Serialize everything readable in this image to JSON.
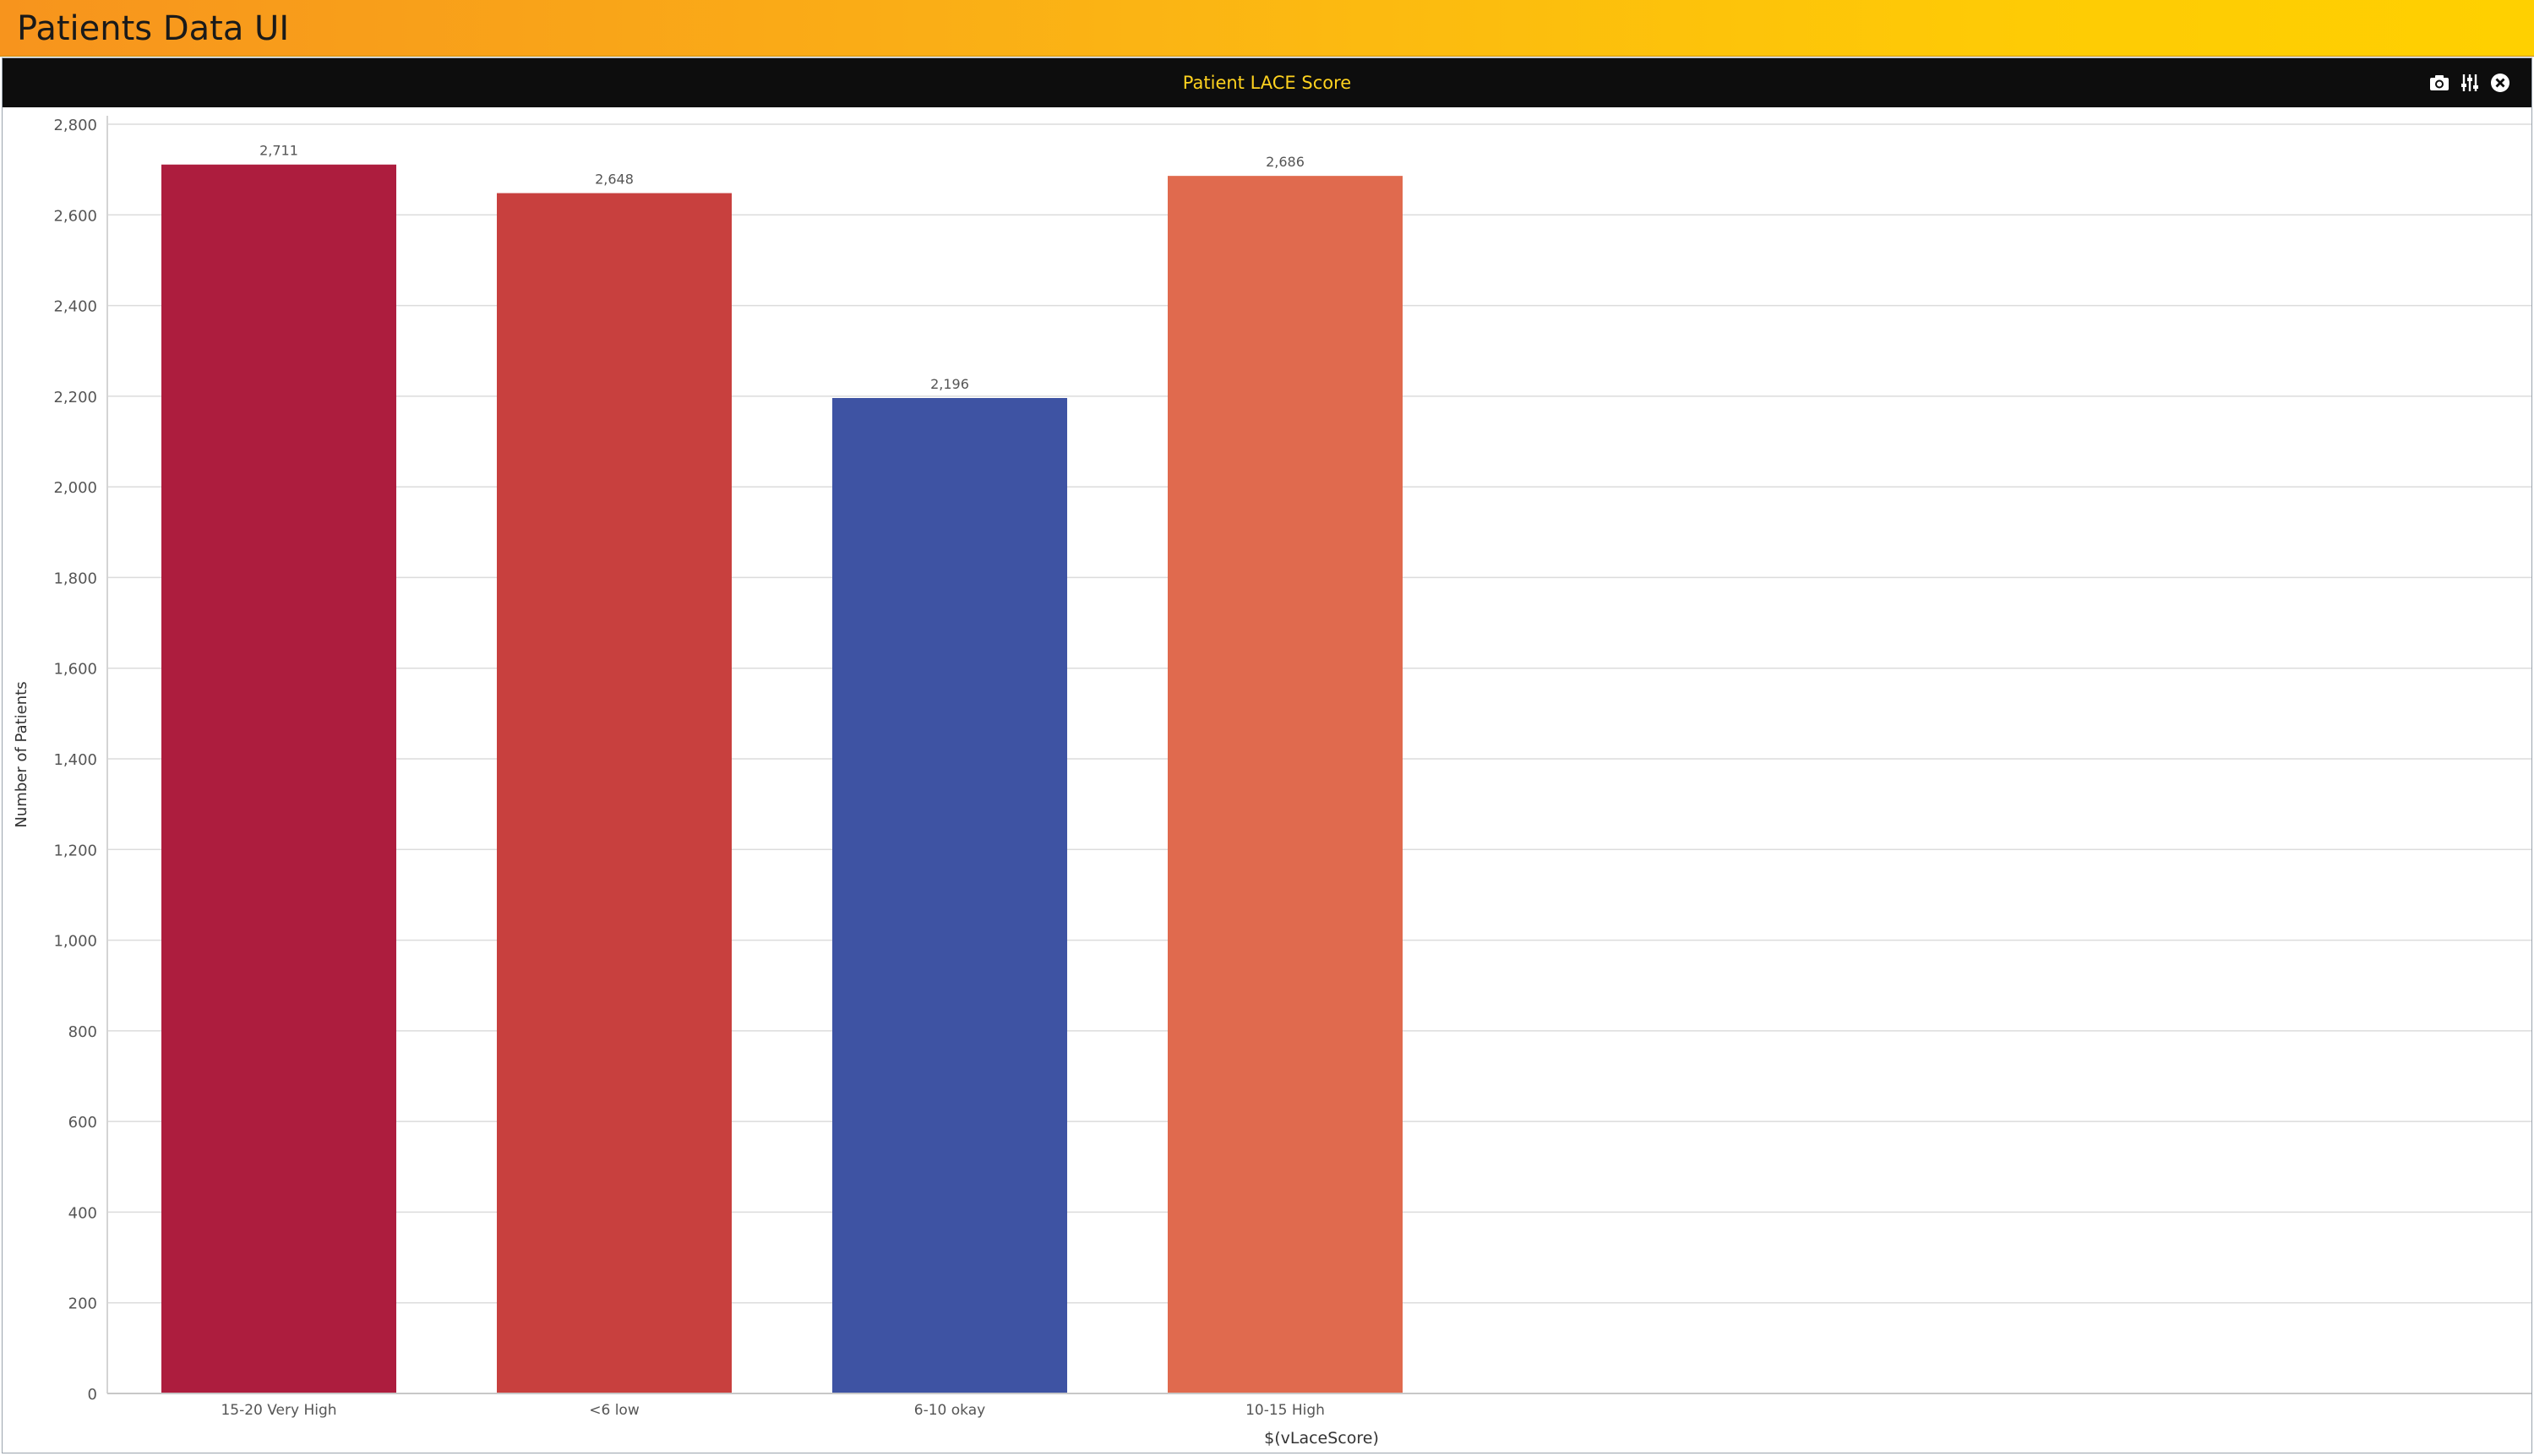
{
  "app": {
    "title": "Patients Data UI"
  },
  "panel": {
    "title": "Patient LACE Score",
    "tools": [
      {
        "icon": "camera-icon",
        "action": "snapshot"
      },
      {
        "icon": "sliders-icon",
        "action": "settings"
      },
      {
        "icon": "close-icon",
        "action": "close"
      }
    ]
  },
  "colors": {
    "header_start": "#f7941d",
    "header_end": "#ffd000",
    "panel_title_text": "#ffd21f",
    "bar_15_20": "#ad1d3e",
    "bar_lt6": "#c8403e",
    "bar_6_10": "#3e53a3",
    "bar_10_15": "#e06a4e"
  },
  "chart_data": {
    "type": "bar",
    "title": "Patient LACE Score",
    "xlabel": "$(vLaceScore)",
    "ylabel": "Number of Patients",
    "categories": [
      "15-20 Very High",
      "<6 low",
      "6-10 okay",
      "10-15 High"
    ],
    "values": [
      2711,
      2648,
      2196,
      2686
    ],
    "value_labels": [
      "2,711",
      "2,648",
      "2,196",
      "2,686"
    ],
    "bar_colors": [
      "#ad1d3e",
      "#c8403e",
      "#3e53a3",
      "#e06a4e"
    ],
    "ylim": [
      0,
      2800
    ],
    "yticks": [
      0,
      200,
      400,
      600,
      800,
      1000,
      1200,
      1400,
      1600,
      1800,
      2000,
      2200,
      2400,
      2600,
      2800
    ],
    "ytick_labels": [
      "0",
      "200",
      "400",
      "600",
      "800",
      "1,000",
      "1,200",
      "1,400",
      "1,600",
      "1,800",
      "2,000",
      "2,200",
      "2,400",
      "2,600",
      "2,800"
    ],
    "grid": true,
    "legend": "none"
  }
}
